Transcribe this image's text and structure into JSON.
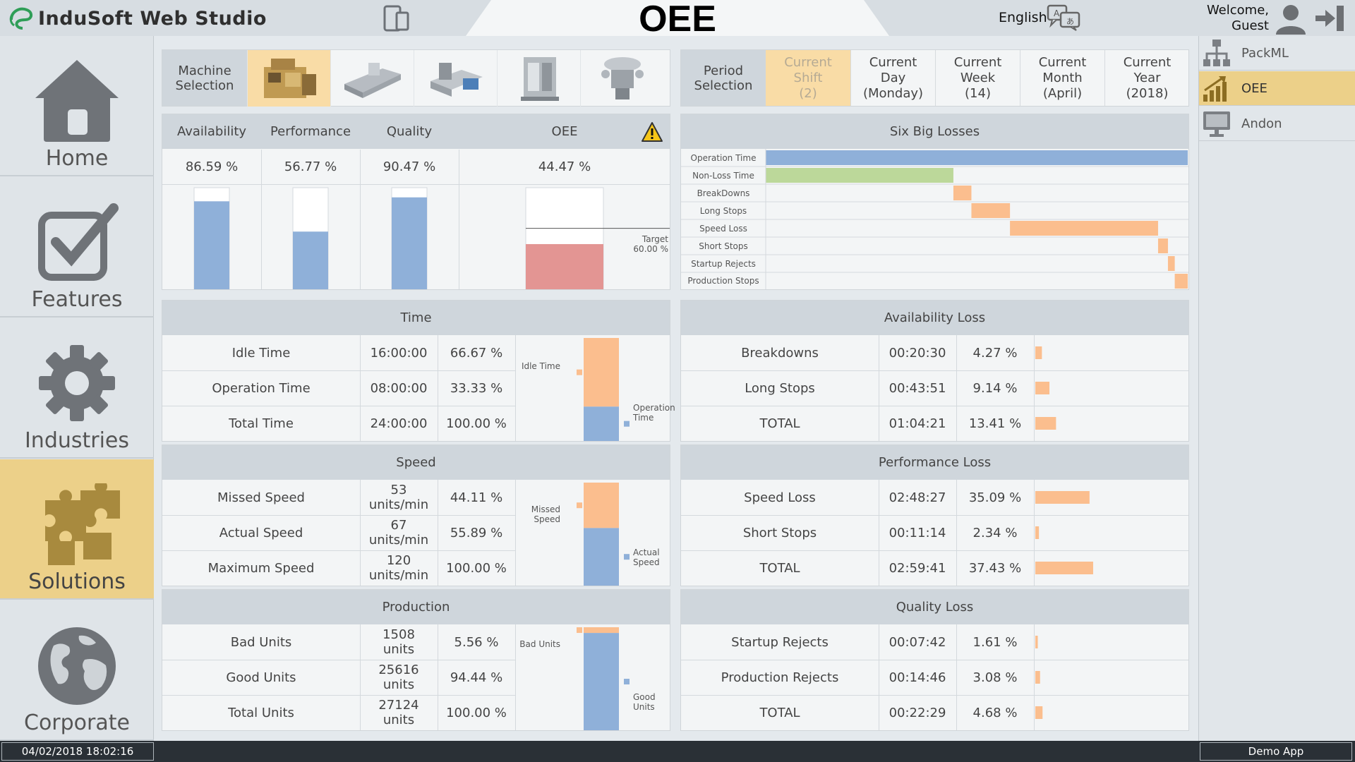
{
  "header": {
    "brand": "InduSoft Web Studio",
    "title": "OEE",
    "language": "English",
    "welcome_line1": "Welcome,",
    "welcome_line2": "Guest"
  },
  "left_nav": [
    {
      "label": "Home",
      "icon": "home-icon"
    },
    {
      "label": "Features",
      "icon": "checkbox-icon"
    },
    {
      "label": "Industries",
      "icon": "gear-icon"
    },
    {
      "label": "Solutions",
      "icon": "puzzle-icon",
      "active": true
    },
    {
      "label": "Corporate",
      "icon": "globe-icon"
    }
  ],
  "right_nav": [
    {
      "label": "PackML",
      "icon": "hierarchy-icon"
    },
    {
      "label": "OEE",
      "icon": "growth-chart-icon",
      "active": true
    },
    {
      "label": "Andon",
      "icon": "monitor-icon"
    }
  ],
  "machine_selection": {
    "label_line1": "Machine",
    "label_line2": "Selection",
    "selected_index": 0
  },
  "period_selection": {
    "label_line1": "Period",
    "label_line2": "Selection",
    "options": [
      {
        "l1": "Current",
        "l2": "Shift",
        "l3": "(2)",
        "selected": true
      },
      {
        "l1": "Current",
        "l2": "Day",
        "l3": "(Monday)"
      },
      {
        "l1": "Current",
        "l2": "Week",
        "l3": "(14)"
      },
      {
        "l1": "Current",
        "l2": "Month",
        "l3": "(April)"
      },
      {
        "l1": "Current",
        "l2": "Year",
        "l3": "(2018)"
      }
    ]
  },
  "kpis": {
    "availability": {
      "label": "Availability",
      "value": "86.59 %",
      "fraction": 0.8659
    },
    "performance": {
      "label": "Performance",
      "value": "56.77 %",
      "fraction": 0.5677
    },
    "quality": {
      "label": "Quality",
      "value": "90.47 %",
      "fraction": 0.9047
    },
    "oee": {
      "label": "OEE",
      "value": "44.47 %",
      "fraction": 0.4447,
      "target_fraction": 0.6
    },
    "target_label": "Target",
    "target_value": "60.00 %"
  },
  "six_big_losses": {
    "title": "Six Big Losses",
    "rows": [
      {
        "label": "Operation Time",
        "start": 0,
        "length": 1.0,
        "color": "#8fb0d9"
      },
      {
        "label": "Non-Loss Time",
        "start": 0,
        "length": 0.4447,
        "color": "#bcd89a"
      },
      {
        "label": "BreakDowns",
        "start": 0.4447,
        "length": 0.0427,
        "color": "#fbbe8e"
      },
      {
        "label": "Long Stops",
        "start": 0.4874,
        "length": 0.0914,
        "color": "#fbbe8e"
      },
      {
        "label": "Speed Loss",
        "start": 0.5788,
        "length": 0.3509,
        "color": "#fbbe8e"
      },
      {
        "label": "Short Stops",
        "start": 0.9297,
        "length": 0.0234,
        "color": "#fbbe8e"
      },
      {
        "label": "Startup Rejects",
        "start": 0.9531,
        "length": 0.0161,
        "color": "#fbbe8e"
      },
      {
        "label": "Production Stops",
        "start": 0.9692,
        "length": 0.0308,
        "color": "#fbbe8e"
      }
    ]
  },
  "time": {
    "title": "Time",
    "rows": [
      {
        "name": "Idle Time",
        "v1": "16:00:00",
        "v2": "",
        "pct": "66.67 %"
      },
      {
        "name": "Operation Time",
        "v1": "08:00:00",
        "v2": "",
        "pct": "33.33 %"
      },
      {
        "name": "Total Time",
        "v1": "24:00:00",
        "v2": "",
        "pct": "100.00 %"
      }
    ],
    "chart": {
      "top_label": "Idle Time",
      "bottom_label": "Operation Time",
      "top_fraction": 0.6667,
      "bottom_fraction": 0.3333
    }
  },
  "speed": {
    "title": "Speed",
    "rows": [
      {
        "name": "Missed Speed",
        "v1": "53",
        "v2": "units/min",
        "pct": "44.11 %"
      },
      {
        "name": "Actual Speed",
        "v1": "67",
        "v2": "units/min",
        "pct": "55.89 %"
      },
      {
        "name": "Maximum Speed",
        "v1": "120",
        "v2": "units/min",
        "pct": "100.00 %"
      }
    ],
    "chart": {
      "top_label": "Missed Speed",
      "bottom_label": "Actual Speed",
      "top_fraction": 0.4411,
      "bottom_fraction": 0.5589
    }
  },
  "production": {
    "title": "Production",
    "rows": [
      {
        "name": "Bad Units",
        "v1": "1508",
        "v2": "units",
        "pct": "5.56 %"
      },
      {
        "name": "Good Units",
        "v1": "25616",
        "v2": "units",
        "pct": "94.44 %"
      },
      {
        "name": "Total Units",
        "v1": "27124",
        "v2": "units",
        "pct": "100.00 %"
      }
    ],
    "chart": {
      "top_label": "Bad Units",
      "bottom_label": "Good Units",
      "top_fraction": 0.0556,
      "bottom_fraction": 0.9444
    }
  },
  "availability_loss": {
    "title": "Availability Loss",
    "rows": [
      {
        "name": "Breakdowns",
        "time": "00:20:30",
        "pct": "4.27 %",
        "fraction": 0.0427
      },
      {
        "name": "Long Stops",
        "time": "00:43:51",
        "pct": "9.14 %",
        "fraction": 0.0914
      },
      {
        "name": "TOTAL",
        "time": "01:04:21",
        "pct": "13.41 %",
        "fraction": 0.1341
      }
    ]
  },
  "performance_loss": {
    "title": "Performance Loss",
    "rows": [
      {
        "name": "Speed Loss",
        "time": "02:48:27",
        "pct": "35.09 %",
        "fraction": 0.3509
      },
      {
        "name": "Short Stops",
        "time": "00:11:14",
        "pct": "2.34 %",
        "fraction": 0.0234
      },
      {
        "name": "TOTAL",
        "time": "02:59:41",
        "pct": "37.43 %",
        "fraction": 0.3743
      }
    ]
  },
  "quality_loss": {
    "title": "Quality Loss",
    "rows": [
      {
        "name": "Startup Rejects",
        "time": "00:07:42",
        "pct": "1.61 %",
        "fraction": 0.0161
      },
      {
        "name": "Production Rejects",
        "time": "00:14:46",
        "pct": "3.08 %",
        "fraction": 0.0308
      },
      {
        "name": "TOTAL",
        "time": "00:22:29",
        "pct": "4.68 %",
        "fraction": 0.0468
      }
    ]
  },
  "status_bar": {
    "datetime": "04/02/2018 18:02:16",
    "app_name": "Demo App"
  },
  "colors": {
    "accent": "#ecd089",
    "selected": "#f9dca6",
    "blue_bar": "#8fb0d9",
    "orange_bar": "#fbbe8e",
    "green_bar": "#bcd89a",
    "red_bar": "#e39593"
  }
}
